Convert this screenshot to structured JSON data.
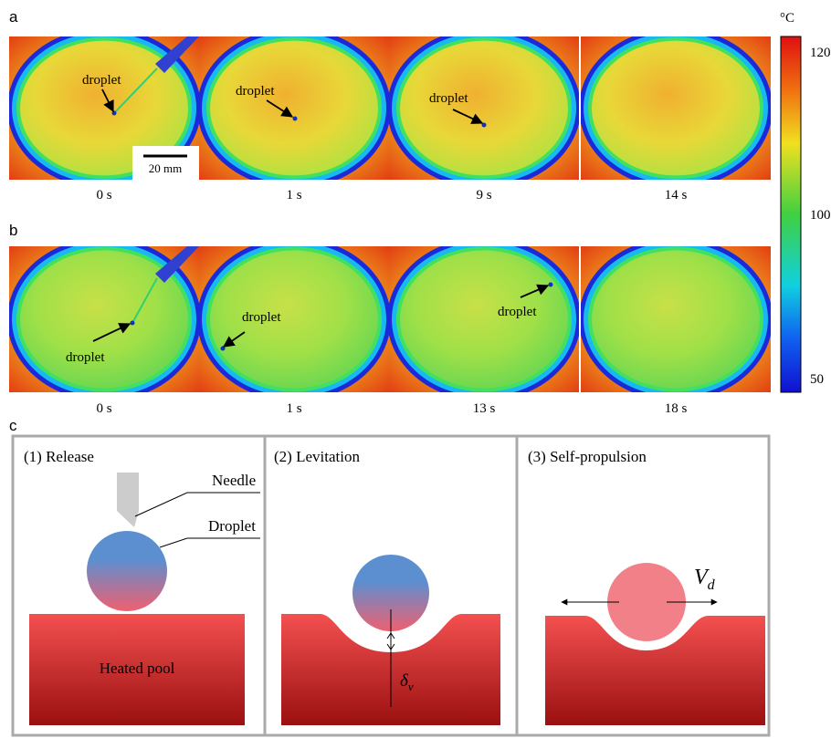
{
  "panels": [
    {
      "label": "a",
      "frames": [
        {
          "time": "0 s",
          "annotation": "droplet"
        },
        {
          "time": "1 s",
          "annotation": "droplet"
        },
        {
          "time": "9 s",
          "annotation": "droplet"
        },
        {
          "time": "14 s"
        }
      ],
      "scale_bar": "20 mm"
    },
    {
      "label": "b",
      "frames": [
        {
          "time": "0 s",
          "annotation": "droplet"
        },
        {
          "time": "1 s",
          "annotation": "droplet"
        },
        {
          "time": "13 s",
          "annotation": "droplet"
        },
        {
          "time": "18 s"
        }
      ]
    }
  ],
  "colorbar": {
    "unit": "°C",
    "ticks": [
      120,
      100,
      50
    ]
  },
  "schematic": {
    "label": "c",
    "steps": [
      {
        "title": "(1) Release",
        "needle": "Needle",
        "droplet": "Droplet",
        "pool": "Heated pool"
      },
      {
        "title": "(2) Levitation",
        "gap_symbol": "δ",
        "gap_subscript": "v"
      },
      {
        "title": "(3) Self-propulsion",
        "velocity_symbol": "V",
        "velocity_subscript": "d"
      }
    ]
  }
}
